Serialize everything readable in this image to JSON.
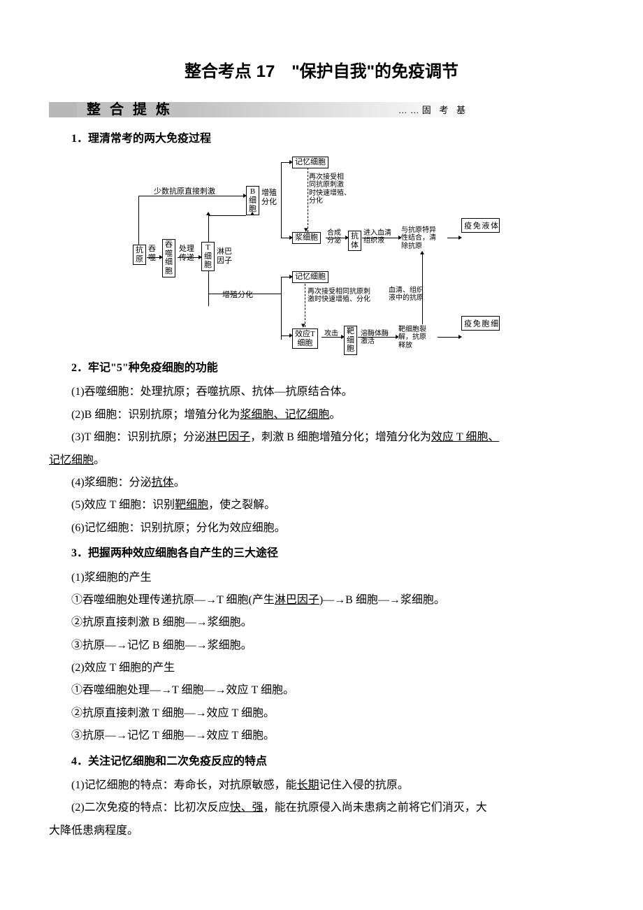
{
  "title": "整合考点 17　\"保护自我\"的免疫调节",
  "banner": {
    "left": "整 合 提 炼",
    "right": "……固 考 基"
  },
  "s1": {
    "heading": "1．理清常考的两大免疫过程",
    "diagram": {
      "antigen": "抗\n原",
      "swallow_small": "吞\n噬",
      "macrophage": "吞\n噬\n细\n胞",
      "process": "处理\n传递",
      "tcell": "T\n细\n胞",
      "lymphokine": "淋巴\n因子",
      "few_direct": "少数抗原直接刺激",
      "bcell": "B\n细\n胞",
      "prolif1": "增殖\n分化",
      "memory_top": "记忆细胞",
      "memory_top_note": "再次接受相\n同抗原刺激\n时快速增殖、\n分化",
      "plasma": "浆细胞",
      "synth": "合成\n分泌",
      "antibody": "抗\n体",
      "enter": "进入血清\n组织液",
      "bind": "与抗原特异\n性结合，清\n除抗原",
      "humoral": "体\n液\n免\n疫",
      "prolif2": "增殖分化",
      "memory_bot": "记忆细胞",
      "memory_bot_note": "再次接受相同抗原刺\n激时快速增殖、分化",
      "serum_note": "血清、组织\n液中的抗原",
      "effT": "效应T\n细胞",
      "attack": "攻击",
      "target": "靶\n细\n胞",
      "lyso": "溶酶体酶\n激活",
      "lysis": "靶细胞裂\n解，抗原\n释放",
      "cellular": "细\n胞\n免\n疫"
    }
  },
  "s2": {
    "heading": "2．牢记\"5\"种免疫细胞的功能",
    "i1a": "(1)吞噬细胞：处理抗原；吞噬抗原、抗体—抗原结合体。",
    "i2a": "(2)B 细胞：识别抗原；增殖分化为",
    "i2u": "浆细胞、记忆细胞",
    "i2b": "。",
    "i3a": "(3)T 细胞：识别抗原；分泌",
    "i3u1": "淋巴因子",
    "i3b": "，刺激 B 细胞增殖分化；增殖分化为",
    "i3u2": "效应 T 细胞、",
    "i3u3": "记忆细胞",
    "i3c": "。",
    "i4a": "(4)浆细胞：分泌",
    "i4u": "抗体",
    "i4b": "。",
    "i5a": "(5)效应 T 细胞：识别",
    "i5u": "靶细胞",
    "i5b": "，使之裂解。",
    "i6": "(6)记忆细胞：识别抗原；分化为效应细胞。"
  },
  "s3": {
    "heading": "3．把握两种效应细胞各自产生的三大途径",
    "p1": "(1)浆细胞的产生",
    "p1_1a": "①吞噬细胞处理传递抗原―→T 细胞(产生",
    "p1_1u": "淋巴因子",
    "p1_1b": ")―→B 细胞―→浆细胞。",
    "p1_2": "②抗原直接刺激 B 细胞―→浆细胞。",
    "p1_3": "③抗原―→记忆 B 细胞―→浆细胞。",
    "p2": "(2)效应 T 细胞的产生",
    "p2_1": "①吞噬细胞处理―→T 细胞―→效应 T 细胞。",
    "p2_2": "②抗原直接刺激 T 细胞―→效应 T 细胞。",
    "p2_3": "③抗原―→记忆 T 细胞―→效应 T 细胞。"
  },
  "s4": {
    "heading": "4．关注记忆细胞和二次免疫反应的特点",
    "i1a": "(1)记忆细胞的特点：寿命长，对抗原敏感，能",
    "i1u": "长期",
    "i1b": "记住入侵的抗原。",
    "i2a": "(2)二次免疫的特点：比初次反应",
    "i2u": "快、强",
    "i2b": "，能在抗原侵入尚未患病之前将它们消灭，大",
    "i2c": "大降低患病程度。"
  }
}
